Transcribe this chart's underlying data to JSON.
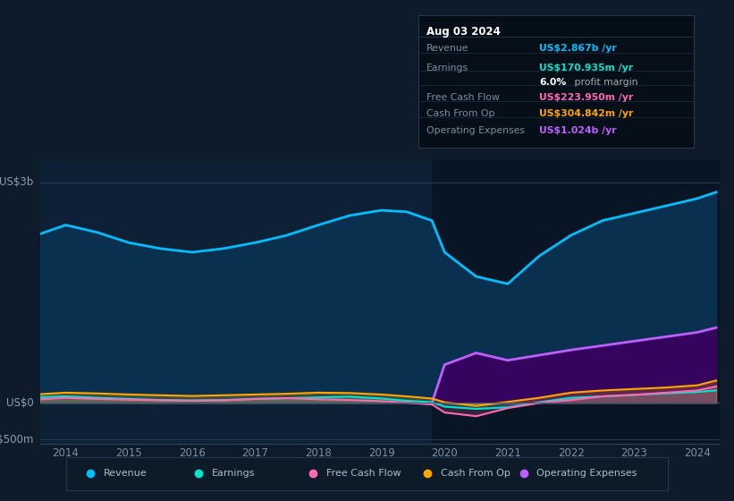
{
  "bg_color": "#0d1b2a",
  "plot_bg_color": "#0d2035",
  "grid_color": "#1e3a50",
  "title_date": "Aug 03 2024",
  "tooltip": {
    "Revenue": {
      "value": "US$2.867b /yr",
      "color": "#00bfff"
    },
    "Earnings": {
      "value": "US$170.935m /yr",
      "color": "#00e5cc"
    },
    "margin_text": "6.0% profit margin",
    "Free Cash Flow": {
      "value": "US$223.950m /yr",
      "color": "#ff69b4"
    },
    "Cash From Op": {
      "value": "US$304.842m /yr",
      "color": "#ffa500"
    },
    "Operating Expenses": {
      "value": "US$1.024b /yr",
      "color": "#bf5fff"
    }
  },
  "years": [
    2013.6,
    2014.0,
    2014.5,
    2015.0,
    2015.5,
    2016.0,
    2016.5,
    2017.0,
    2017.5,
    2018.0,
    2018.5,
    2019.0,
    2019.4,
    2019.8,
    2020.0,
    2020.5,
    2021.0,
    2021.5,
    2022.0,
    2022.5,
    2023.0,
    2023.5,
    2024.0,
    2024.3
  ],
  "revenue": [
    2.3,
    2.42,
    2.32,
    2.18,
    2.1,
    2.05,
    2.1,
    2.18,
    2.28,
    2.42,
    2.55,
    2.62,
    2.6,
    2.48,
    2.05,
    1.72,
    1.62,
    2.0,
    2.28,
    2.48,
    2.58,
    2.68,
    2.78,
    2.867
  ],
  "earnings": [
    0.08,
    0.09,
    0.07,
    0.055,
    0.04,
    0.035,
    0.04,
    0.055,
    0.065,
    0.075,
    0.085,
    0.06,
    0.03,
    0.01,
    -0.05,
    -0.08,
    -0.06,
    0.01,
    0.07,
    0.09,
    0.11,
    0.13,
    0.15,
    0.171
  ],
  "free_cash_flow": [
    0.05,
    0.07,
    0.055,
    0.045,
    0.035,
    0.03,
    0.035,
    0.055,
    0.065,
    0.05,
    0.04,
    0.025,
    0.005,
    -0.02,
    -0.13,
    -0.18,
    -0.07,
    0.0,
    0.04,
    0.09,
    0.11,
    0.14,
    0.17,
    0.224
  ],
  "cash_from_op": [
    0.12,
    0.14,
    0.13,
    0.115,
    0.105,
    0.095,
    0.105,
    0.115,
    0.125,
    0.14,
    0.135,
    0.115,
    0.09,
    0.06,
    0.01,
    -0.04,
    0.015,
    0.07,
    0.14,
    0.17,
    0.19,
    0.21,
    0.24,
    0.305
  ],
  "op_exp_years": [
    2019.8,
    2020.0,
    2020.5,
    2021.0,
    2021.5,
    2022.0,
    2022.5,
    2023.0,
    2023.5,
    2024.0,
    2024.3
  ],
  "op_expenses": [
    0.0,
    0.52,
    0.68,
    0.58,
    0.65,
    0.72,
    0.78,
    0.84,
    0.9,
    0.96,
    1.024
  ],
  "highlight_x_start": 2019.8,
  "highlight_x_end": 2024.35,
  "xlim": [
    2013.6,
    2024.35
  ],
  "ylim": [
    -0.55,
    3.3
  ],
  "xtick_years": [
    2014,
    2015,
    2016,
    2017,
    2018,
    2019,
    2020,
    2021,
    2022,
    2023,
    2024
  ],
  "legend_items": [
    {
      "label": "Revenue",
      "color": "#00bfff"
    },
    {
      "label": "Earnings",
      "color": "#00e5cc"
    },
    {
      "label": "Free Cash Flow",
      "color": "#ff69b4"
    },
    {
      "label": "Cash From Op",
      "color": "#ffa500"
    },
    {
      "label": "Operating Expenses",
      "color": "#bf5fff"
    }
  ]
}
